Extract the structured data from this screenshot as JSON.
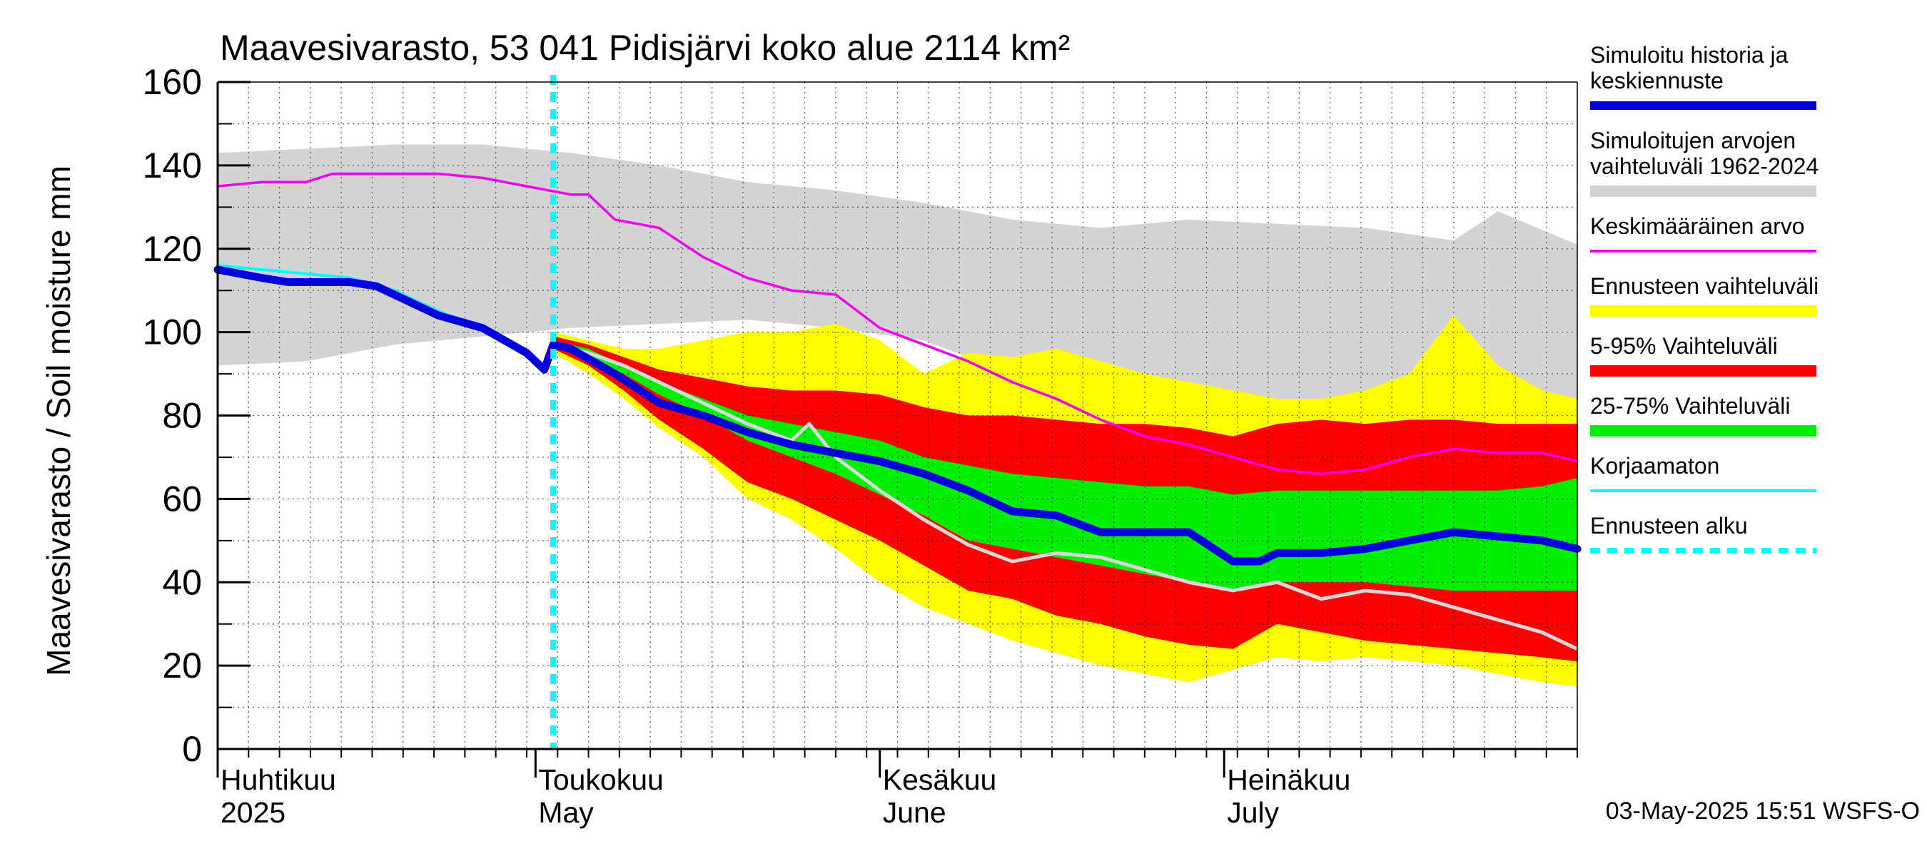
{
  "chart_data": {
    "type": "area",
    "title": "Maavesivarasto, 53 041 Pidisjärvi koko alue 2114 km²",
    "ylabel": "Maavesivarasto / Soil moisture   mm",
    "ylim": [
      0,
      160
    ],
    "yticks": [
      "0",
      "20",
      "40",
      "60",
      "80",
      "100",
      "120",
      "140",
      "160"
    ],
    "xlim_days": [
      0,
      154
    ],
    "x_axis_start_date": "2025-03-26",
    "month_labels": [
      {
        "day": 0,
        "line1": "Huhtikuu",
        "line2": "2025"
      },
      {
        "day": 36,
        "line1": "Toukokuu",
        "line2": "May"
      },
      {
        "day": 75,
        "line1": "Kesäkuu",
        "line2": "June"
      },
      {
        "day": 114,
        "line1": "Heinäkuu",
        "line2": "July"
      }
    ],
    "forecast_start_day": 38,
    "timestamp": "03-May-2025 15:51 WSFS-O",
    "colors": {
      "history": "#0000dd",
      "hist_band": "#d3d3d3",
      "mean": "#ee00ee",
      "forecast_range": "#ffff00",
      "band_5_95": "#ff0000",
      "band_25_75": "#00ee00",
      "uncorrected": "#00ffff",
      "forecast_start": "#00ffff",
      "grey_line": "#d8d8d8"
    },
    "legend": [
      {
        "label": "Simuloitu historia ja keskiennuste",
        "lines": [
          "Simuloitu historia ja",
          "keskiennuste"
        ],
        "style": "thick",
        "color": "#0000dd"
      },
      {
        "label": "Simuloitujen arvojen vaihteluväli 1962-2024",
        "lines": [
          "Simuloitujen arvojen",
          "vaihteluväli 1962-2024"
        ],
        "style": "band",
        "color": "#d3d3d3"
      },
      {
        "label": "Keskimääräinen arvo",
        "lines": [
          "Keskimääräinen arvo"
        ],
        "style": "thin",
        "color": "#ee00ee"
      },
      {
        "label": "Ennusteen vaihteluväli",
        "lines": [
          "Ennusteen vaihteluväli"
        ],
        "style": "band",
        "color": "#ffff00"
      },
      {
        "label": "5-95% Vaihteluväli",
        "lines": [
          "5-95% Vaihteluväli"
        ],
        "style": "band",
        "color": "#ff0000"
      },
      {
        "label": "25-75% Vaihteluväli",
        "lines": [
          "25-75% Vaihteluväli"
        ],
        "style": "band",
        "color": "#00ee00"
      },
      {
        "label": "Korjaamaton",
        "lines": [
          "Korjaamaton"
        ],
        "style": "thin",
        "color": "#00ffff"
      },
      {
        "label": "Ennusteen alku",
        "lines": [
          "Ennusteen alku"
        ],
        "style": "dashed",
        "color": "#00ffff"
      }
    ],
    "series": [
      {
        "name": "Simuloitujen arvojen vaihteluväli 1962-2024",
        "kind": "band",
        "x": [
          0,
          10,
          20,
          30,
          40,
          50,
          60,
          70,
          80,
          90,
          100,
          110,
          120,
          130,
          140,
          145,
          154
        ],
        "lower": [
          92,
          93,
          97,
          99,
          101,
          102,
          103,
          101,
          98,
          90,
          84,
          82,
          81,
          80,
          82,
          84,
          84
        ],
        "upper": [
          143,
          144,
          145,
          145,
          143,
          140,
          136,
          134,
          131,
          127,
          125,
          127,
          126,
          125,
          122,
          129,
          121
        ]
      },
      {
        "name": "Ennusteen vaihteluväli",
        "kind": "band",
        "x": [
          38,
          42,
          46,
          50,
          55,
          60,
          65,
          70,
          75,
          80,
          85,
          90,
          95,
          100,
          105,
          110,
          115,
          120,
          125,
          130,
          135,
          140,
          145,
          150,
          154
        ],
        "lower": [
          95,
          90,
          84,
          77,
          70,
          60,
          55,
          48,
          40,
          34,
          30,
          26,
          23,
          20,
          18,
          16,
          19,
          22,
          21,
          22,
          21,
          20,
          18,
          16,
          15
        ],
        "upper": [
          100,
          98,
          96,
          96,
          98,
          100,
          100,
          102,
          98,
          90,
          95,
          94,
          96,
          93,
          90,
          88,
          86,
          84,
          84,
          86,
          90,
          104,
          92,
          86,
          84
        ]
      },
      {
        "name": "5-95% Vaihteluväli",
        "kind": "band",
        "x": [
          38,
          42,
          46,
          50,
          55,
          60,
          65,
          70,
          75,
          80,
          85,
          90,
          95,
          100,
          105,
          110,
          115,
          120,
          125,
          130,
          135,
          140,
          145,
          150,
          154
        ],
        "lower": [
          96,
          92,
          86,
          79,
          72,
          64,
          60,
          55,
          50,
          44,
          38,
          36,
          32,
          30,
          27,
          25,
          24,
          30,
          28,
          26,
          25,
          24,
          23,
          22,
          21
        ],
        "upper": [
          99,
          97,
          94,
          91,
          89,
          87,
          86,
          86,
          85,
          82,
          80,
          80,
          79,
          78,
          78,
          77,
          75,
          78,
          79,
          78,
          79,
          79,
          78,
          78,
          78
        ]
      },
      {
        "name": "25-75% Vaihteluväli",
        "kind": "band",
        "x": [
          38,
          42,
          46,
          50,
          55,
          60,
          65,
          70,
          75,
          80,
          85,
          90,
          95,
          100,
          105,
          110,
          115,
          120,
          125,
          130,
          135,
          140,
          145,
          150,
          154
        ],
        "lower": [
          97,
          94,
          90,
          85,
          80,
          74,
          70,
          66,
          61,
          56,
          50,
          48,
          46,
          44,
          42,
          40,
          38,
          40,
          40,
          40,
          39,
          38,
          38,
          38,
          38
        ],
        "upper": [
          98,
          96,
          92,
          88,
          84,
          80,
          78,
          76,
          74,
          70,
          68,
          66,
          65,
          64,
          63,
          63,
          61,
          62,
          62,
          62,
          62,
          62,
          62,
          63,
          65
        ]
      },
      {
        "name": "Keskimääräinen arvo",
        "kind": "line",
        "x": [
          0,
          5,
          10,
          13,
          20,
          25,
          30,
          35,
          40,
          42,
          45,
          50,
          55,
          60,
          65,
          70,
          75,
          80,
          85,
          90,
          95,
          100,
          105,
          110,
          115,
          120,
          125,
          130,
          135,
          140,
          145,
          150,
          154
        ],
        "values": [
          135,
          136,
          136,
          138,
          138,
          138,
          137,
          135,
          133,
          133,
          127,
          125,
          118,
          113,
          110,
          109,
          101,
          97,
          93,
          88,
          84,
          79,
          75,
          73,
          70,
          67,
          66,
          67,
          70,
          72,
          71,
          71,
          69
        ]
      },
      {
        "name": "Simuloitu historia ja keskiennuste",
        "kind": "line",
        "x": [
          0,
          5,
          8,
          15,
          18,
          25,
          30,
          35,
          37,
          38,
          40,
          45,
          50,
          55,
          60,
          65,
          70,
          75,
          80,
          85,
          90,
          95,
          100,
          105,
          110,
          115,
          118,
          120,
          125,
          130,
          135,
          140,
          145,
          150,
          154
        ],
        "values": [
          115,
          113,
          112,
          112,
          111,
          104,
          101,
          95,
          91,
          97,
          96,
          90,
          83,
          80,
          76,
          73,
          71,
          69,
          66,
          62,
          57,
          56,
          52,
          52,
          52,
          45,
          45,
          47,
          47,
          48,
          50,
          52,
          51,
          50,
          48
        ]
      },
      {
        "name": "Korjaamaton",
        "kind": "line",
        "x": [
          0,
          5,
          10,
          15,
          20,
          25,
          30,
          36
        ],
        "values": [
          116,
          115,
          114,
          113,
          110,
          105,
          101,
          93
        ]
      },
      {
        "name": "Mediaani (harmaa)",
        "kind": "line",
        "x": [
          38,
          42,
          46,
          50,
          55,
          60,
          65,
          67,
          70,
          75,
          80,
          85,
          90,
          95,
          100,
          105,
          110,
          115,
          120,
          125,
          130,
          135,
          140,
          145,
          150,
          154
        ],
        "values": [
          97,
          95,
          92,
          88,
          83,
          78,
          74,
          78,
          70,
          62,
          55,
          49,
          45,
          47,
          46,
          43,
          40,
          38,
          40,
          36,
          38,
          37,
          34,
          31,
          28,
          24
        ]
      }
    ]
  }
}
